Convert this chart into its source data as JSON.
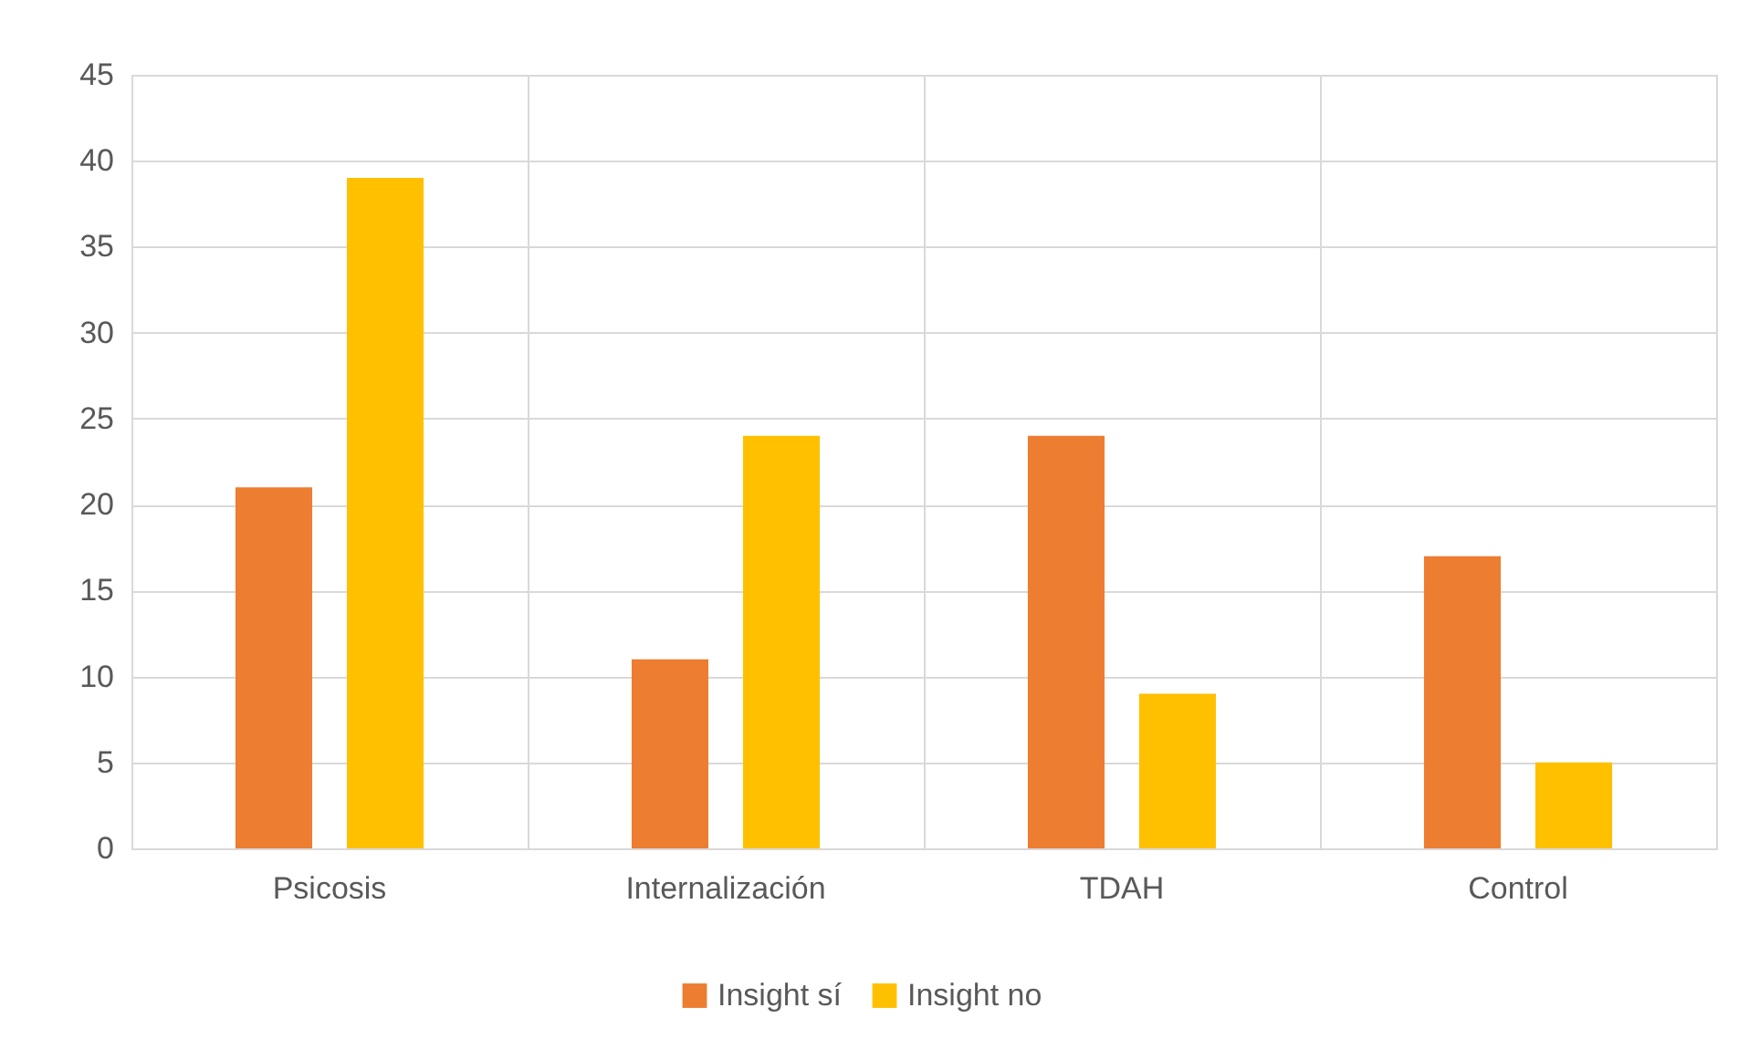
{
  "chart_data": {
    "type": "bar",
    "categories": [
      "Psicosis",
      "Internalización",
      "TDAH",
      "Control"
    ],
    "series": [
      {
        "name": "Insight sí",
        "color": "#ed7d31",
        "values": [
          21,
          11,
          24,
          17
        ]
      },
      {
        "name": "Insight no",
        "color": "#ffc000",
        "values": [
          39,
          24,
          9,
          5
        ]
      }
    ],
    "ylim": [
      0,
      45
    ],
    "yticks": [
      0,
      5,
      10,
      15,
      20,
      25,
      30,
      35,
      40,
      45
    ],
    "grid": true,
    "legend": "bottom"
  }
}
